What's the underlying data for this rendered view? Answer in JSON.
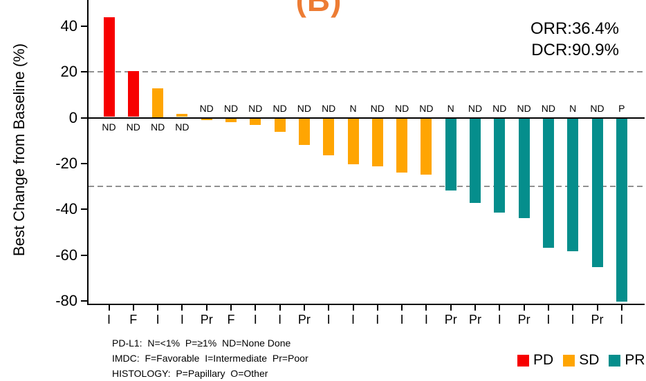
{
  "figure_label": "(B)",
  "stats": {
    "orr": "ORR:36.4%",
    "dcr": "DCR:90.9%"
  },
  "footnotes": {
    "pdl1": "PD-L1:  N=<1%  P=≥1%  ND=None Done",
    "imdc": "IMDC:  F=Favorable  I=Intermediate  Pr=Poor",
    "histology": "HISTOLOGY:  P=Papillary  O=Other"
  },
  "legend": [
    {
      "label": "PD",
      "color": "#F70000"
    },
    {
      "label": "SD",
      "color": "#FFA502"
    },
    {
      "label": "PR",
      "color": "#058E8C"
    }
  ],
  "colors": {
    "title_orange": "#ED7C34",
    "dashed_gray": "#909090",
    "axis_black": "#000000"
  },
  "chart_data": {
    "type": "bar",
    "title": "(B)",
    "xlabel": "",
    "ylabel": "Best Change from Baseline (%)",
    "ylim": [
      -81.5,
      51.5
    ],
    "yticks": [
      40,
      20,
      0,
      -20,
      -40,
      -60,
      -80
    ],
    "reference_lines": [
      {
        "y": 20,
        "style": "dashed"
      },
      {
        "y": -30,
        "style": "dashed"
      }
    ],
    "grid": false,
    "legend_position": "bottom-right",
    "series_colors": {
      "PD": "#F70000",
      "SD": "#FFA502",
      "PR": "#058E8C"
    },
    "bars": [
      {
        "value": 43.5,
        "response": "PD",
        "pdl1": "ND",
        "imdc": "I"
      },
      {
        "value": 20,
        "response": "PD",
        "pdl1": "ND",
        "imdc": "F"
      },
      {
        "value": 12.5,
        "response": "SD",
        "pdl1": "ND",
        "imdc": "I"
      },
      {
        "value": 1.5,
        "response": "SD",
        "pdl1": "ND",
        "imdc": "I"
      },
      {
        "value": -0.8,
        "response": "SD",
        "pdl1": "ND",
        "imdc": "Pr"
      },
      {
        "value": -1.7,
        "response": "SD",
        "pdl1": "ND",
        "imdc": "F"
      },
      {
        "value": -2.8,
        "response": "SD",
        "pdl1": "ND",
        "imdc": "I"
      },
      {
        "value": -5.8,
        "response": "SD",
        "pdl1": "ND",
        "imdc": "I"
      },
      {
        "value": -11.5,
        "response": "SD",
        "pdl1": "ND",
        "imdc": "Pr"
      },
      {
        "value": -16,
        "response": "SD",
        "pdl1": "ND",
        "imdc": "I"
      },
      {
        "value": -20,
        "response": "SD",
        "pdl1": "N",
        "imdc": "I"
      },
      {
        "value": -21,
        "response": "SD",
        "pdl1": "ND",
        "imdc": "I"
      },
      {
        "value": -23.5,
        "response": "SD",
        "pdl1": "ND",
        "imdc": "I"
      },
      {
        "value": -24.5,
        "response": "SD",
        "pdl1": "ND",
        "imdc": "I"
      },
      {
        "value": -31.5,
        "response": "PR",
        "pdl1": "N",
        "imdc": "Pr"
      },
      {
        "value": -37,
        "response": "PR",
        "pdl1": "ND",
        "imdc": "Pr"
      },
      {
        "value": -41,
        "response": "PR",
        "pdl1": "ND",
        "imdc": "I"
      },
      {
        "value": -43.5,
        "response": "PR",
        "pdl1": "ND",
        "imdc": "Pr"
      },
      {
        "value": -56.5,
        "response": "PR",
        "pdl1": "ND",
        "imdc": "I"
      },
      {
        "value": -58,
        "response": "PR",
        "pdl1": "N",
        "imdc": "I"
      },
      {
        "value": -65,
        "response": "PR",
        "pdl1": "ND",
        "imdc": "Pr"
      },
      {
        "value": -80,
        "response": "PR",
        "pdl1": "P",
        "imdc": "I"
      }
    ]
  }
}
